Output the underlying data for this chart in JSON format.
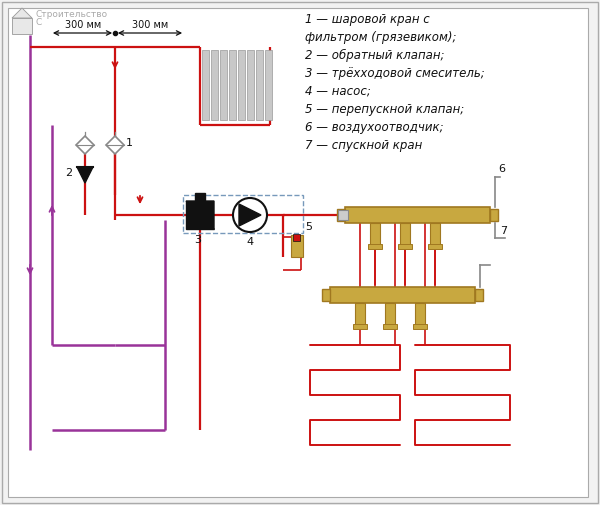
{
  "bg": "#f2f2f2",
  "white": "#ffffff",
  "red": "#cc1111",
  "purple": "#993399",
  "purple2": "#aa44aa",
  "brass": "#c8a840",
  "brass_dark": "#a07820",
  "black": "#111111",
  "gray_rad": "#bbbbbb",
  "gray_dark": "#888888",
  "blue_dash": "#7799bb",
  "legend": [
    "1 — шаровой кран с",
    "фильтром (грязевиком);",
    "2 — обратный клапан;",
    "3 — трёхходовой смеситель;",
    "4 — насос;",
    "5 — перепускной клапан;",
    "6 — воздухоотводчик;",
    "7 — спускной кран"
  ],
  "wm1": "Строительство",
  "wm2": "С"
}
